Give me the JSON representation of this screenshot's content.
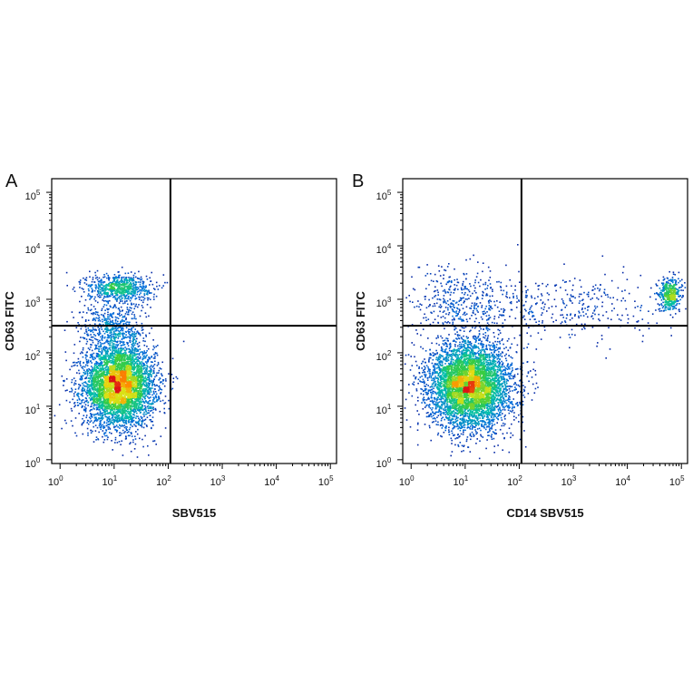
{
  "chart_data": [
    {
      "type": "scatter",
      "panel_label": "A",
      "xlabel": "SBV515",
      "ylabel": "CD63 FITC",
      "x_scale": "log",
      "y_scale": "log",
      "xlim": [
        0.7,
        130000
      ],
      "ylim": [
        0.85,
        180000
      ],
      "x_ticks": [
        {
          "base": "10",
          "exp": "0"
        },
        {
          "base": "10",
          "exp": "1"
        },
        {
          "base": "10",
          "exp": "2"
        },
        {
          "base": "10",
          "exp": "3"
        },
        {
          "base": "10",
          "exp": "4"
        },
        {
          "base": "10",
          "exp": "5"
        }
      ],
      "y_ticks": [
        {
          "base": "10",
          "exp": "0"
        },
        {
          "base": "10",
          "exp": "1"
        },
        {
          "base": "10",
          "exp": "2"
        },
        {
          "base": "10",
          "exp": "3"
        },
        {
          "base": "10",
          "exp": "4"
        },
        {
          "base": "10",
          "exp": "5"
        }
      ],
      "quadrant_gates": {
        "x": 110,
        "y": 320
      },
      "grid": false,
      "populations": [
        {
          "center_x": 12,
          "center_y": 25,
          "spread_log_x": 0.33,
          "spread_log_y": 0.38,
          "count": 4800
        },
        {
          "center_x": 12,
          "center_y": 1700,
          "spread_log_x": 0.3,
          "spread_log_y": 0.13,
          "count": 700
        },
        {
          "center_x": 9,
          "center_y": 300,
          "spread_log_x": 0.3,
          "spread_log_y": 0.25,
          "count": 500
        }
      ]
    },
    {
      "type": "scatter",
      "panel_label": "B",
      "xlabel": "CD14 SBV515",
      "ylabel": "CD63 FITC",
      "x_scale": "log",
      "y_scale": "log",
      "xlim": [
        0.7,
        130000
      ],
      "ylim": [
        0.85,
        180000
      ],
      "x_ticks": [
        {
          "base": "10",
          "exp": "0"
        },
        {
          "base": "10",
          "exp": "1"
        },
        {
          "base": "10",
          "exp": "2"
        },
        {
          "base": "10",
          "exp": "3"
        },
        {
          "base": "10",
          "exp": "4"
        },
        {
          "base": "10",
          "exp": "5"
        }
      ],
      "y_ticks": [
        {
          "base": "10",
          "exp": "0"
        },
        {
          "base": "10",
          "exp": "1"
        },
        {
          "base": "10",
          "exp": "2"
        },
        {
          "base": "10",
          "exp": "3"
        },
        {
          "base": "10",
          "exp": "4"
        },
        {
          "base": "10",
          "exp": "5"
        }
      ],
      "quadrant_gates": {
        "x": 110,
        "y": 320
      },
      "grid": false,
      "populations": [
        {
          "center_x": 12,
          "center_y": 25,
          "spread_log_x": 0.38,
          "spread_log_y": 0.4,
          "count": 5200
        },
        {
          "center_x": 60000,
          "center_y": 1300,
          "spread_log_x": 0.1,
          "spread_log_y": 0.15,
          "count": 450
        },
        {
          "center_x": 800,
          "center_y": 700,
          "spread_log_x": 0.9,
          "spread_log_y": 0.3,
          "count": 350
        },
        {
          "center_x": 8,
          "center_y": 900,
          "spread_log_x": 0.5,
          "spread_log_y": 0.35,
          "count": 400
        }
      ]
    }
  ]
}
